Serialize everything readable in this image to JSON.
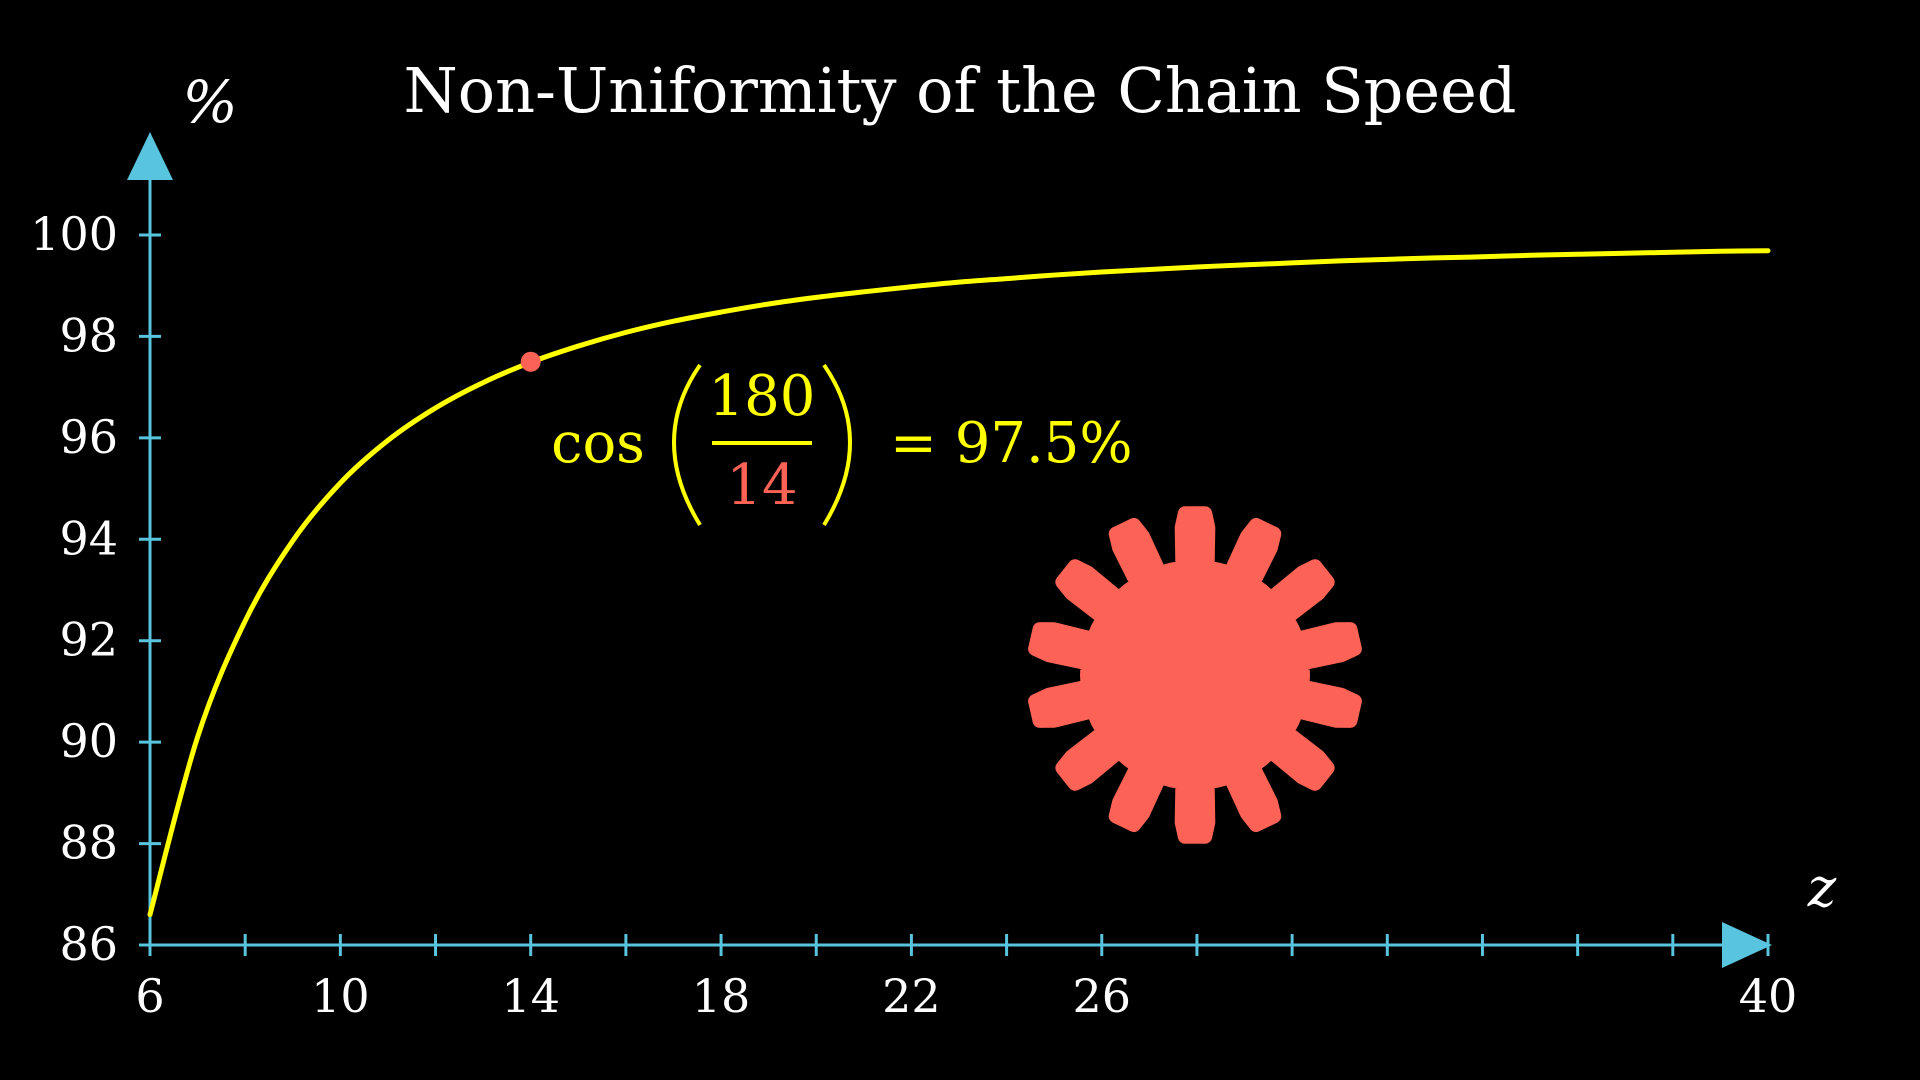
{
  "chart_data": {
    "type": "line",
    "title": "Non-Uniformity of the Chain Speed",
    "ylabel": "%",
    "xlabel": "z",
    "xlim": [
      6,
      40
    ],
    "ylim": [
      86,
      100
    ],
    "x_ticks": [
      6,
      8,
      10,
      12,
      14,
      16,
      18,
      20,
      22,
      24,
      26,
      28,
      30,
      32,
      34,
      36,
      38,
      40
    ],
    "x_tick_labels": [
      {
        "x": 6,
        "label": "6"
      },
      {
        "x": 10,
        "label": "10"
      },
      {
        "x": 14,
        "label": "14"
      },
      {
        "x": 18,
        "label": "18"
      },
      {
        "x": 22,
        "label": "22"
      },
      {
        "x": 26,
        "label": "26"
      },
      {
        "x": 40,
        "label": "40"
      }
    ],
    "y_ticks": [
      86,
      88,
      90,
      92,
      94,
      96,
      98,
      100
    ],
    "y_tick_labels": [
      "86",
      "88",
      "90",
      "92",
      "94",
      "96",
      "98",
      "100"
    ],
    "grid": false,
    "series": [
      {
        "formula": "100*cos(180/z deg)",
        "x": [
          6,
          7,
          8,
          9,
          10,
          11,
          12,
          13,
          14,
          15,
          16,
          17,
          18,
          19,
          20,
          21,
          22,
          23,
          24,
          25,
          26,
          27,
          28,
          29,
          30,
          31,
          32,
          33,
          34,
          35,
          36,
          37,
          38,
          39,
          40
        ],
        "values": [
          86.6,
          90.1,
          92.39,
          93.97,
          95.11,
          95.95,
          96.59,
          97.09,
          97.49,
          97.81,
          98.08,
          98.3,
          98.48,
          98.64,
          98.77,
          98.88,
          98.98,
          99.07,
          99.14,
          99.21,
          99.27,
          99.32,
          99.37,
          99.41,
          99.45,
          99.49,
          99.52,
          99.55,
          99.57,
          99.6,
          99.62,
          99.64,
          99.66,
          99.68,
          99.69
        ]
      }
    ],
    "highlight_point": {
      "x": 14,
      "y": 97.5
    },
    "annotation": {
      "func": "cos",
      "numerator": "180",
      "denominator": "14",
      "result": "= 97.5%"
    }
  },
  "gear": {
    "teeth": 14
  },
  "colors": {
    "background": "#000000",
    "axis": "#58c4dd",
    "curve": "#ffff00",
    "accent": "#fc6255",
    "text": "#ffffff"
  }
}
